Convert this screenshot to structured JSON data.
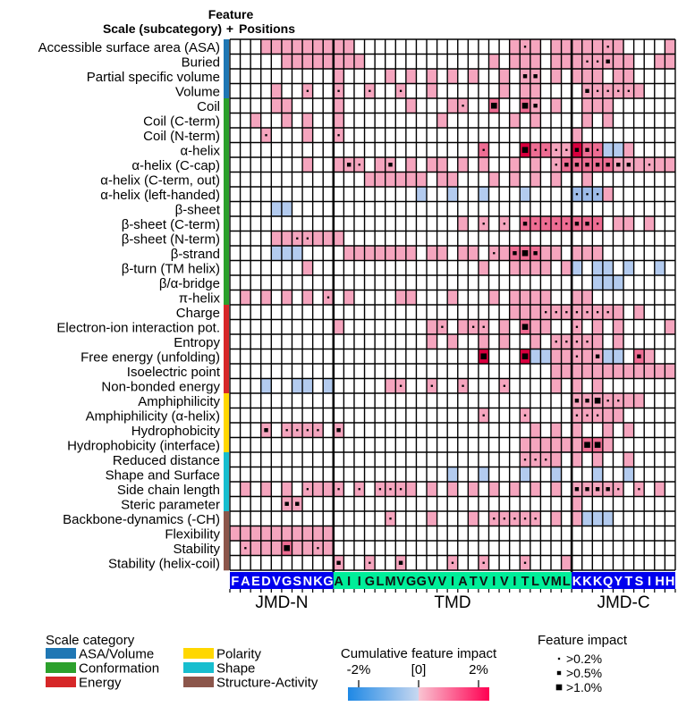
{
  "chart_data": {
    "type": "heatmap",
    "header": {
      "title": "Feature",
      "left": "Scale (subcategory)",
      "plus": "+",
      "right": "Positions"
    },
    "rows": [
      {
        "label": "Accessible surface area (ASA)",
        "category": "ASA/Volume"
      },
      {
        "label": "Buried",
        "category": "ASA/Volume"
      },
      {
        "label": "Partial specific volume",
        "category": "ASA/Volume"
      },
      {
        "label": "Volume",
        "category": "ASA/Volume"
      },
      {
        "label": "Coil",
        "category": "Conformation"
      },
      {
        "label": "Coil (C-term)",
        "category": "Conformation"
      },
      {
        "label": "Coil (N-term)",
        "category": "Conformation"
      },
      {
        "label": "α-helix",
        "category": "Conformation"
      },
      {
        "label": "α-helix (C-cap)",
        "category": "Conformation"
      },
      {
        "label": "α-helix (C-term, out)",
        "category": "Conformation"
      },
      {
        "label": "α-helix (left-handed)",
        "category": "Conformation"
      },
      {
        "label": "β-sheet",
        "category": "Conformation"
      },
      {
        "label": "β-sheet (C-term)",
        "category": "Conformation"
      },
      {
        "label": "β-sheet (N-term)",
        "category": "Conformation"
      },
      {
        "label": "β-strand",
        "category": "Conformation"
      },
      {
        "label": "β-turn (TM helix)",
        "category": "Conformation"
      },
      {
        "label": "β/α-bridge",
        "category": "Conformation"
      },
      {
        "label": "π-helix",
        "category": "Conformation"
      },
      {
        "label": "Charge",
        "category": "Energy"
      },
      {
        "label": "Electron-ion interaction pot.",
        "category": "Energy"
      },
      {
        "label": "Entropy",
        "category": "Energy"
      },
      {
        "label": "Free energy (unfolding)",
        "category": "Energy"
      },
      {
        "label": "Isoelectric point",
        "category": "Energy"
      },
      {
        "label": "Non-bonded energy",
        "category": "Energy"
      },
      {
        "label": "Amphiphilicity",
        "category": "Polarity"
      },
      {
        "label": "Amphiphilicity (α-helix)",
        "category": "Polarity"
      },
      {
        "label": "Hydrophobicity",
        "category": "Polarity"
      },
      {
        "label": "Hydrophobicity (interface)",
        "category": "Polarity"
      },
      {
        "label": "Reduced distance",
        "category": "Shape"
      },
      {
        "label": "Shape and Surface",
        "category": "Shape"
      },
      {
        "label": "Side chain length",
        "category": "Shape"
      },
      {
        "label": "Steric parameter",
        "category": "Shape"
      },
      {
        "label": "Backbone-dynamics (-CH)",
        "category": "Structure-Activity"
      },
      {
        "label": "Flexibility",
        "category": "Structure-Activity"
      },
      {
        "label": "Stability",
        "category": "Structure-Activity"
      },
      {
        "label": "Stability (helix-coil)",
        "category": "Structure-Activity"
      }
    ],
    "sequence": "FAEDVGSNKGAIIGLMVGGVVIATVIVITLVMLKKKQYTSIHH",
    "segments": [
      {
        "name": "JMD-N",
        "start": 0,
        "end": 10,
        "color": "#0000ee",
        "text_color": "#ffffff"
      },
      {
        "name": "TMD",
        "start": 10,
        "end": 33,
        "color": "#00ee99",
        "text_color": "#111111"
      },
      {
        "name": "JMD-C",
        "start": 33,
        "end": 43,
        "color": "#0000ee",
        "text_color": "#ffffff"
      }
    ],
    "categories": [
      {
        "name": "ASA/Volume",
        "color": "#1f77b4"
      },
      {
        "name": "Conformation",
        "color": "#2ca02c"
      },
      {
        "name": "Energy",
        "color": "#d62728"
      },
      {
        "name": "Polarity",
        "color": "#ffd700"
      },
      {
        "name": "Shape",
        "color": "#17becf"
      },
      {
        "name": "Structure-Activity",
        "color": "#8c564b"
      }
    ],
    "cell_grammar": "row|col:level:dot ; level 1=+weak 2=+medium 3=+strong -1/-2/-3 negative ; dot 1=>0.2% 2=>0.5% 3=>1.0%",
    "cells": [
      "0|3:1",
      "0|4:1",
      "0|5:1",
      "0|6:1",
      "0|7:1",
      "0|8:1",
      "0|9:1",
      "0|10:1",
      "0|11:1",
      "0|27:1",
      "0|28:1:1",
      "0|29:1",
      "0|31:1",
      "0|32:1",
      "0|33:1",
      "0|34:1",
      "0|35:1",
      "0|36:1:1",
      "0|37:1",
      "0|42:1",
      "1|5:1",
      "1|6:1",
      "1|7:1",
      "1|8:1",
      "1|9:1",
      "1|10:1",
      "1|11:1",
      "1|12:1",
      "1|25:1",
      "1|27:1",
      "1|28:1",
      "1|29:1",
      "1|31:1",
      "1|32:1",
      "1|33:1",
      "1|34:1:1",
      "1|35:1:1",
      "1|36:1:2",
      "1|37:1",
      "1|38:1",
      "1|41:1",
      "1|42:1",
      "2|10:1",
      "2|15:1",
      "2|17:1",
      "2|19:1",
      "2|21:1",
      "2|23:1",
      "2|26:1",
      "2|28:1:2",
      "2|29:1:2",
      "2|31:1",
      "2|33:1",
      "2|34:1",
      "2|35:1",
      "2|37:1",
      "2|38:1",
      "3|4:1",
      "3|7:1:1",
      "3|10:1:1",
      "3|13:1:1",
      "3|16:1:1",
      "3|19:1",
      "3|26:1",
      "3|28:1",
      "3|29:1",
      "3|34:1:2",
      "3|35:1:1",
      "3|36:1:1",
      "3|37:1:1",
      "3|38:1:1",
      "3|39:1",
      "4|4:1",
      "4|5:1",
      "4|10:1",
      "4|17:1",
      "4|21:1",
      "4|22:1:1",
      "4|25:2:3",
      "4|28:2:3",
      "4|29:1:2",
      "4|31:1",
      "4|34:1",
      "4|35:1",
      "4|36:1",
      "5|2:1",
      "5|5:1",
      "5|7:1",
      "5|10:1",
      "5|20:1",
      "5|27:1",
      "5|29:1",
      "5|34:1",
      "5|36:1",
      "6|3:1:1",
      "6|7:1",
      "6|10:1:1",
      "6|33:1",
      "7|24:2:1",
      "7|28:3:3",
      "7|29:2:1",
      "7|30:2:1",
      "7|31:1:1",
      "7|32:1:1",
      "7|33:3:2",
      "7|34:2:2",
      "7|35:2:1",
      "7|36:-1",
      "7|37:-1",
      "7|38:1",
      "8|7:1",
      "8|10:1",
      "8|11:1:2",
      "8|12:1:1",
      "8|14:1",
      "8|15:1:2",
      "8|17:1",
      "8|19:1",
      "8|20:1",
      "8|22:1",
      "8|24:1",
      "8|27:1",
      "8|29:1",
      "8|31:1:1",
      "8|32:2:2",
      "8|33:2:2",
      "8|34:2:2",
      "8|35:2:2",
      "8|36:2:2",
      "8|37:1:2",
      "8|38:1:2",
      "8|39:1",
      "8|40:1:1",
      "8|41:1",
      "8|42:1",
      "9|13:1",
      "9|14:1",
      "9|15:1",
      "9|16:1",
      "9|17:1",
      "9|18:1",
      "9|20:1",
      "9|21:1",
      "9|25:1",
      "9|27:1",
      "9|29:1",
      "9|31:1",
      "9|34:1",
      "10|18:-1",
      "10|21:-1",
      "10|24:-1",
      "10|28:-1",
      "10|33:-2:1",
      "10|34:-2:1",
      "10|35:-2:1",
      "10|36:1",
      "11|4:-1",
      "11|5:-1",
      "12|22:1",
      "12|24:1:1",
      "12|26:1:1",
      "12|28:2:2",
      "12|29:2:1",
      "12|30:2:1",
      "12|31:2:1",
      "12|32:2:1",
      "12|33:2:2",
      "12|34:2:2",
      "12|35:2:1",
      "12|37:1",
      "12|38:1",
      "12|40:1",
      "13|4:1",
      "13|5:1",
      "13|6:1:1",
      "13|7:1:1",
      "13|8:1",
      "13|9:1",
      "13|10:1",
      "14|4:-1",
      "14|5:-1",
      "14|6:-1",
      "14|11:1",
      "14|12:1",
      "14|13:1",
      "14|14:1",
      "14|15:1",
      "14|16:1",
      "14|17:1",
      "14|19:1",
      "14|20:1",
      "14|22:1",
      "14|23:1",
      "14|25:1:1",
      "14|26:1",
      "14|27:2:2",
      "14|28:2:3",
      "14|29:2:2",
      "14|30:1",
      "14|31:1",
      "14|33:1",
      "14|34:1",
      "14|35:1",
      "15|7:1",
      "15|24:1",
      "15|27:1",
      "15|28:1",
      "15|29:1",
      "15|30:1",
      "15|32:1",
      "15|33:-1",
      "15|35:-1",
      "15|36:-1",
      "15|38:-1",
      "15|41:-1",
      "16|35:-1",
      "16|36:-1",
      "16|37:-1",
      "17|1:1",
      "17|3:1",
      "17|5:1",
      "17|7:1",
      "17|9:1:1",
      "17|11:1",
      "17|16:1",
      "17|17:1",
      "17|21:1",
      "17|25:1",
      "17|27:1",
      "17|28:1",
      "17|29:1",
      "17|30:1",
      "17|33:1",
      "17|34:1",
      "18|27:1",
      "18|28:1",
      "18|29:1",
      "18|30:1:1",
      "18|31:1:1",
      "18|32:1:1",
      "18|33:1:1",
      "18|34:1:1",
      "18|35:1:1",
      "18|36:1:1",
      "18|37:1",
      "18|39:1",
      "19|10:1",
      "19|19:1",
      "19|20:1:1",
      "19|22:1",
      "19|23:1:1",
      "19|24:1:1",
      "19|26:1",
      "19|28:2:3",
      "19|29:1",
      "19|30:1",
      "19|33:1:1",
      "19|35:1",
      "19|37:1",
      "19|42:1",
      "20|19:1",
      "20|21:1",
      "20|24:1",
      "20|26:1",
      "20|29:1",
      "20|31:1:1",
      "20|32:1:1",
      "20|33:1:1",
      "20|34:1:1",
      "20|35:1",
      "20|37:1",
      "21|24:3:3",
      "21|28:3:3",
      "21|29:-1",
      "21|30:-1",
      "21|31:1",
      "21|32:1",
      "21|33:1:1",
      "21|34:1",
      "21|35:1:2",
      "21|36:-1",
      "21|37:-1",
      "21|39:2:2",
      "21|40:1",
      "22|31:1",
      "22|32:1",
      "22|33:1",
      "22|34:1",
      "22|35:1",
      "22|36:1",
      "22|37:1",
      "22|38:1",
      "22|39:1",
      "22|40:1",
      "22|41:1",
      "22|42:1",
      "23|3:-1",
      "23|6:-1",
      "23|7:-1",
      "23|9:-1",
      "23|15:1",
      "23|16:1:1",
      "23|19:1:1",
      "23|22:1:1",
      "23|26:1:1",
      "23|31:1",
      "23|33:1",
      "23|35:1",
      "24|33:1:2",
      "24|34:1:2",
      "24|35:1:3",
      "24|36:1:1",
      "24|37:1:1",
      "24|38:1",
      "24|39:1",
      "25|24:1:1",
      "25|28:1:1",
      "25|33:1:1",
      "25|34:1:1",
      "25|35:1:1",
      "25|36:1",
      "25|37:1",
      "26|3:1:2",
      "26|5:1:1",
      "26|6:1:1",
      "26|7:1:1",
      "26|8:1:1",
      "26|10:1:2",
      "26|29:1",
      "26|31:1",
      "26|33:1",
      "26|36:1",
      "26|38:1",
      "27|28:1",
      "27|29:1",
      "27|30:1",
      "27|31:1",
      "27|32:1",
      "27|33:1",
      "27|34:2:3",
      "27|35:2:3",
      "27|36:1",
      "28|28:1:1",
      "28|29:1:1",
      "28|30:1:1",
      "28|31:1",
      "28|33:1",
      "28|35:1",
      "28|38:1",
      "29|21:-1",
      "29|24:-1",
      "29|28:-1",
      "29|31:-1",
      "29|35:-1",
      "29|38:-1",
      "30|1:1",
      "30|3:1",
      "30|5:1",
      "30|7:1:1",
      "30|8:1",
      "30|9:1",
      "30|10:1:1",
      "30|12:1:1",
      "30|14:1:1",
      "30|15:1:1",
      "30|16:1:1",
      "30|17:1",
      "30|19:1",
      "30|21:1",
      "30|23:1",
      "30|25:1",
      "30|27:1",
      "30|29:1",
      "30|31:1",
      "30|33:1:2",
      "30|34:1:2",
      "30|35:1:2",
      "30|36:1:2",
      "30|37:1:1",
      "30|39:1:1",
      "30|41:1",
      "31|5:1:2",
      "31|6:1:2",
      "31|33:1",
      "32|15:1:1",
      "32|19:1",
      "32|23:1",
      "32|25:1:1",
      "32|26:1:1",
      "32|27:1:1",
      "32|28:1:1",
      "32|29:1:1",
      "32|31:1",
      "32|33:1",
      "32|34:-1",
      "32|35:-1",
      "32|36:-1",
      "33|0:1",
      "33|1:1",
      "33|2:1",
      "33|3:1",
      "33|4:1",
      "33|5:1",
      "33|6:1",
      "33|7:1",
      "33|8:1",
      "33|9:1",
      "34|1:1:1",
      "34|2:1",
      "34|3:1",
      "34|4:1",
      "34|5:2:3",
      "34|6:1",
      "34|7:1",
      "34|8:1:1",
      "34|9:1",
      "35|10:1:2",
      "35|13:1:1",
      "35|16:1:2",
      "35|21:1:1",
      "35|24:1:1",
      "35|28:1:1",
      "35|32:1"
    ],
    "legend_title": "Scale category",
    "colorbar": {
      "title": "Cumulative feature impact",
      "ticks": [
        "-2%",
        "[0]",
        "2%"
      ],
      "neg_color": "#1e88e5",
      "pos_color": "#ff0052",
      "mid_neg": "#c8d8f0",
      "mid_pos": "#f9c4d2"
    },
    "impact_legend": {
      "title": "Feature impact",
      "items": [
        ">0.2%",
        ">0.5%",
        ">1.0%"
      ]
    }
  }
}
